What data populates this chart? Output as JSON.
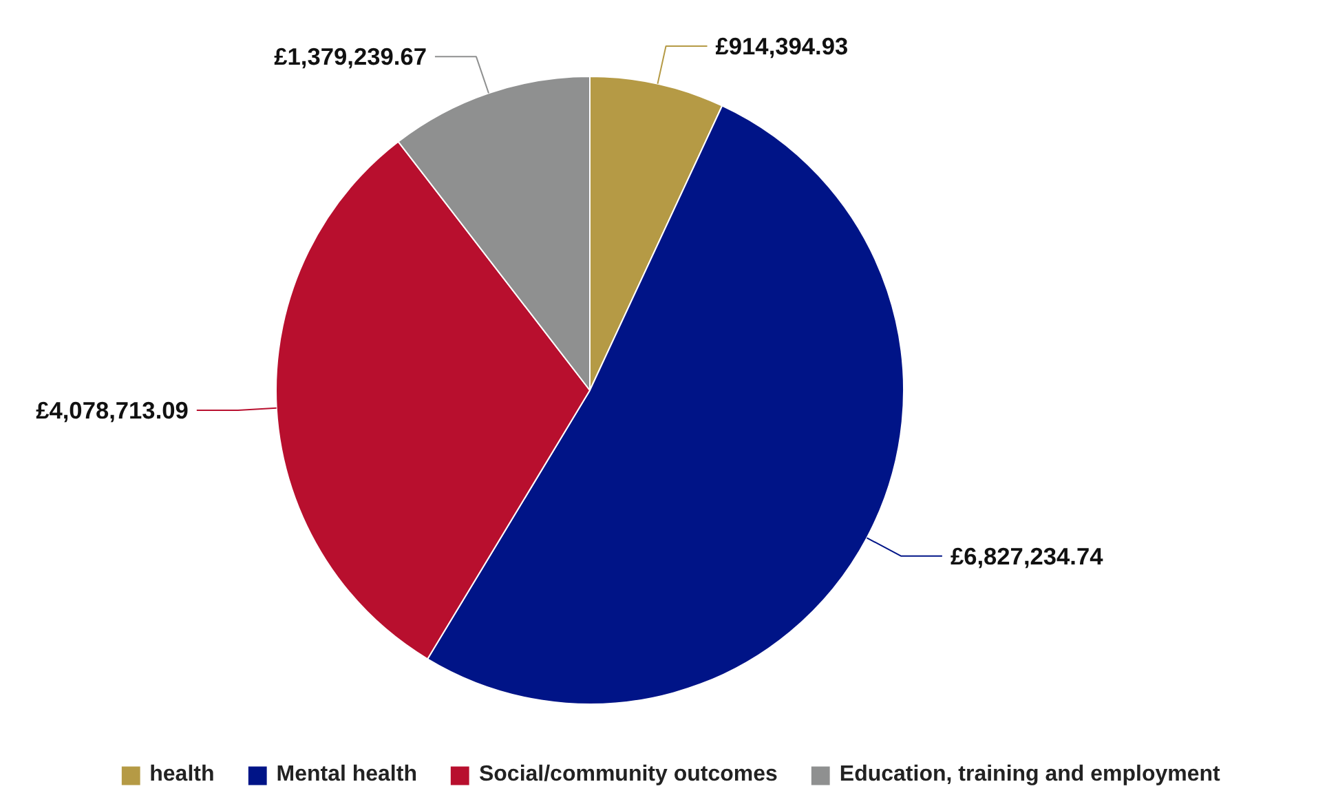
{
  "chart_data": {
    "type": "pie",
    "categories": [
      "health",
      "Mental health",
      "Social/community outcomes",
      "Education, training and employment"
    ],
    "values": [
      914394.93,
      6827234.74,
      4078713.09,
      1379239.67
    ],
    "colors": [
      "#b59a45",
      "#001487",
      "#b80f2e",
      "#8f9090"
    ],
    "value_labels": [
      "£914,394.93",
      "£6,827,234.74",
      "£4,078,713.09",
      "£1,379,239.67"
    ],
    "legend": "bottom"
  }
}
